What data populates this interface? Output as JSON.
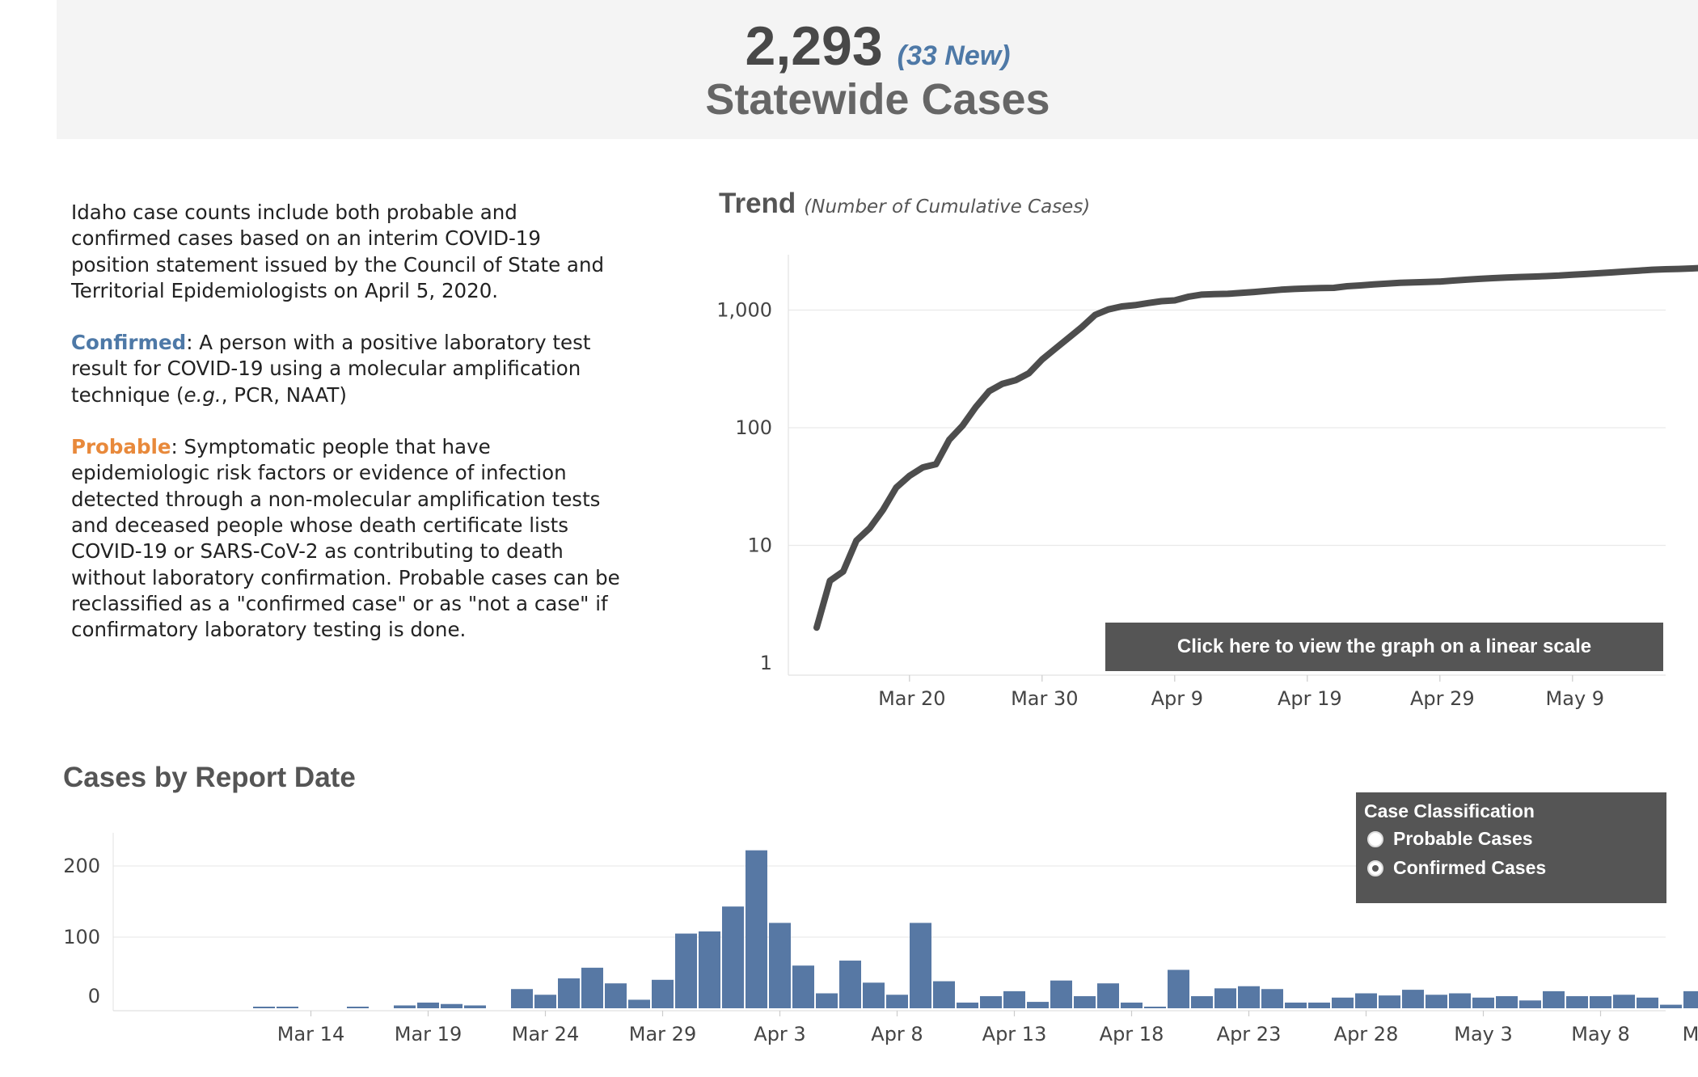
{
  "header": {
    "total": "2,293",
    "new": "(33 New)",
    "subtitle": "Statewide Cases"
  },
  "description": {
    "intro": "Idaho case counts include both probable and confirmed cases based on an interim COVID-19 position statement issued by the Council of State and Territorial Epidemiologists on April 5, 2020.",
    "confirmed_term": "Confirmed",
    "confirmed_pre": ": A person with a positive laboratory test result for COVID-19 using a molecular amplification technique (",
    "confirmed_eg": "e.g.",
    "confirmed_post": ", PCR, NAAT)",
    "probable_term": "Probable",
    "probable_text": ": Symptomatic people that have epidemiologic risk factors or evidence of infection detected through a non-molecular amplification tests and deceased people whose death certificate lists  COVID-19 or SARS-CoV-2 as contributing to death without laboratory confirmation. Probable cases can be reclassified as a \"confirmed case\" or as \"not a case\" if confirmatory laboratory testing is done."
  },
  "trend": {
    "title": "Trend",
    "subtitle": "(Number of Cumulative Cases)",
    "button_label": "Click here to view the graph on a linear scale"
  },
  "bar": {
    "title": "Cases by Report Date"
  },
  "legend": {
    "title": "Case Classification",
    "options": [
      "Probable Cases",
      "Confirmed Cases"
    ],
    "selected": "Confirmed Cases"
  },
  "colors": {
    "bar": "#5778a4",
    "line": "#4d4d4d",
    "confirmed": "#4e79a7",
    "probable": "#e8893b",
    "button_bg": "#555555"
  },
  "chart_data": [
    {
      "type": "line",
      "title": "Trend",
      "subtitle": "(Number of Cumulative Cases)",
      "scale": "log",
      "ylim": [
        1,
        3000
      ],
      "yticks": [
        1,
        10,
        100,
        1000
      ],
      "ytick_labels": [
        "1",
        "10",
        "100",
        "1,000"
      ],
      "xticks": [
        "2020-03-20",
        "2020-03-30",
        "2020-04-09",
        "2020-04-19",
        "2020-04-29",
        "2020-05-09"
      ],
      "xtick_labels": [
        "Mar 20",
        "Mar 30",
        "Apr 9",
        "Apr 19",
        "Apr 29",
        "May 9"
      ],
      "grid": true,
      "start_date": "2020-03-13",
      "series": [
        {
          "name": "",
          "values": [
            2,
            5,
            6,
            11,
            14,
            20,
            31,
            39,
            46,
            49,
            79,
            104,
            150,
            204,
            236,
            253,
            290,
            380,
            470,
            580,
            717,
            911,
            1012,
            1074,
            1101,
            1148,
            1191,
            1209,
            1297,
            1352,
            1366,
            1375,
            1398,
            1426,
            1458,
            1489,
            1512,
            1527,
            1541,
            1546,
            1595,
            1620,
            1651,
            1678,
            1706,
            1721,
            1731,
            1748,
            1783,
            1814,
            1843,
            1867,
            1891,
            1909,
            1925,
            1943,
            1967,
            1999,
            2026,
            2059,
            2090,
            2127,
            2164,
            2202,
            2224,
            2237,
            2260,
            2293
          ]
        }
      ]
    },
    {
      "type": "bar",
      "title": "Cases by Report Date",
      "ylim": [
        0,
        250
      ],
      "yticks": [
        0,
        100,
        200
      ],
      "xtick_labels": [
        "Mar 14",
        "Mar 19",
        "Mar 24",
        "Mar 29",
        "Apr 3",
        "Apr 8",
        "Apr 13",
        "Apr 18",
        "Apr 23",
        "Apr 28",
        "May 3",
        "May 8",
        "May 13"
      ],
      "categories": [
        "Mar 9",
        "Mar 10",
        "Mar 11",
        "Mar 12",
        "Mar 13",
        "Mar 14",
        "Mar 15",
        "Mar 16",
        "Mar 17",
        "Mar 18",
        "Mar 19",
        "Mar 20",
        "Mar 21",
        "Mar 22",
        "Mar 23",
        "Mar 24",
        "Mar 25",
        "Mar 26",
        "Mar 27",
        "Mar 28",
        "Mar 29",
        "Mar 30",
        "Mar 31",
        "Apr 1",
        "Apr 2",
        "Apr 3",
        "Apr 4",
        "Apr 5",
        "Apr 6",
        "Apr 7",
        "Apr 8",
        "Apr 9",
        "Apr 10",
        "Apr 11",
        "Apr 12",
        "Apr 13",
        "Apr 14",
        "Apr 15",
        "Apr 16",
        "Apr 17",
        "Apr 18",
        "Apr 19",
        "Apr 20",
        "Apr 21",
        "Apr 22",
        "Apr 23",
        "Apr 24",
        "Apr 25",
        "Apr 26",
        "Apr 27",
        "Apr 28",
        "Apr 29",
        "Apr 30",
        "May 1",
        "May 2",
        "May 3",
        "May 4",
        "May 5",
        "May 6",
        "May 7",
        "May 8",
        "May 9",
        "May 10",
        "May 11",
        "May 12",
        "May 13"
      ],
      "series": [
        {
          "name": "Confirmed Cases",
          "values": [
            0,
            0,
            0,
            1,
            1,
            0,
            0,
            2,
            0,
            4,
            8,
            6,
            4,
            0,
            27,
            19,
            42,
            57,
            35,
            12,
            40,
            105,
            108,
            143,
            222,
            120,
            60,
            21,
            67,
            36,
            19,
            120,
            38,
            8,
            17,
            24,
            9,
            39,
            17,
            35,
            8,
            2,
            54,
            17,
            28,
            31,
            27,
            8,
            8,
            15,
            21,
            18,
            26,
            19,
            21,
            15,
            17,
            11,
            24,
            17,
            17,
            19,
            15,
            5,
            24,
            33
          ]
        }
      ]
    }
  ]
}
